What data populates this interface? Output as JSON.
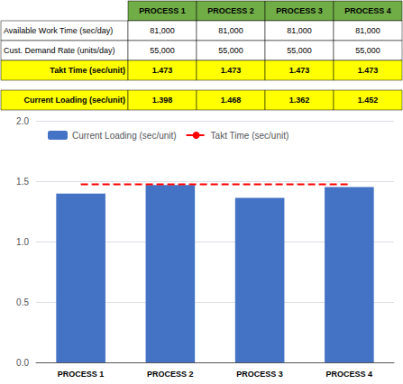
{
  "chart_data": [
    {
      "type": "table",
      "color": "#70AD47",
      "categories": [
        "PROCESS 1",
        "PROCESS 2",
        "PROCESS 3",
        "PROCESS 4"
      ],
      "series": [
        {
          "name": "Available Work Time (sec/day)",
          "values": [
            81000,
            81000,
            81000,
            81000
          ],
          "value_labels": [
            "81,000",
            "81,000",
            "81,000",
            "81,000"
          ]
        },
        {
          "name": "Cust. Demand Rate (units/day)",
          "values": [
            55000,
            55000,
            55000,
            55000
          ],
          "value_labels": [
            "55,000",
            "55,000",
            "55,000",
            "55,000"
          ]
        },
        {
          "name": "Takt Time (sec/unit)",
          "color": "#FFFF00",
          "values": [
            1.473,
            1.473,
            1.473,
            1.473
          ]
        },
        {
          "name": "Current Loading (sec/unit)",
          "color": "#FFFF00",
          "values": [
            1.398,
            1.468,
            1.362,
            1.452
          ]
        }
      ]
    },
    {
      "type": "bar",
      "categories": [
        "PROCESS 1",
        "PROCESS 2",
        "PROCESS 3",
        "PROCESS 4"
      ],
      "series": [
        {
          "name": "Current Loading (sec/unit)",
          "type": "bar",
          "color": "#4472C4",
          "values": [
            1.398,
            1.468,
            1.362,
            1.452
          ]
        },
        {
          "name": "Takt Time (sec/unit)",
          "type": "line",
          "color": "#FF0000",
          "line_style": "dashed",
          "values": [
            1.473,
            1.473,
            1.473,
            1.473
          ]
        }
      ],
      "ylim": [
        0,
        2
      ],
      "yticks": [
        {
          "value": 0,
          "label": "0.0"
        },
        {
          "value": 0.5,
          "label": "0.5"
        },
        {
          "value": 1,
          "label": "1.0"
        },
        {
          "value": 1.5,
          "label": "1.5"
        },
        {
          "value": 2,
          "label": "2.0"
        }
      ],
      "grid": true,
      "legend": "upper left"
    }
  ]
}
